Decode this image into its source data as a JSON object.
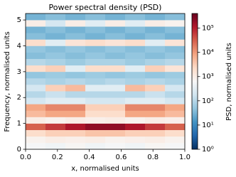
{
  "chart_data": {
    "type": "heatmap",
    "title": "Power spectral density (PSD)",
    "x_label": "x, normalised units",
    "y_label": "Frequency, normalised units",
    "colorbar_label": "PSD, normalised units",
    "x_edges": [
      0,
      0.125,
      0.25,
      0.375,
      0.5,
      0.625,
      0.75,
      0.875,
      1
    ],
    "y_edges": [
      0,
      0.25,
      0.5,
      0.75,
      1,
      1.25,
      1.5,
      1.75,
      2,
      2.25,
      2.5,
      2.75,
      3,
      3.25,
      3.5,
      3.75,
      4,
      4.25,
      4.5,
      4.75,
      5,
      5.25
    ],
    "values": [
      [
        600,
        500,
        700,
        500,
        600,
        500,
        700,
        600
      ],
      [
        800,
        1000,
        900,
        1000,
        800,
        900,
        1000,
        800
      ],
      [
        2000,
        3000,
        3000,
        4000,
        4000,
        3000,
        3000,
        2000
      ],
      [
        30000,
        60000,
        120000,
        200000,
        200000,
        120000,
        60000,
        30000
      ],
      [
        1000,
        800,
        1000,
        900,
        1000,
        800,
        1000,
        900
      ],
      [
        5000,
        8000,
        8000,
        2000,
        2000,
        8000,
        8000,
        5000
      ],
      [
        8000,
        15000,
        15000,
        3000,
        3000,
        15000,
        15000,
        8000
      ],
      [
        200,
        300,
        300,
        200,
        200,
        300,
        300,
        200
      ],
      [
        100,
        150,
        100,
        100,
        100,
        100,
        150,
        100
      ],
      [
        200,
        3000,
        5000,
        300,
        300,
        5000,
        3000,
        200
      ],
      [
        100,
        80,
        100,
        80,
        100,
        80,
        100,
        80
      ],
      [
        50,
        60,
        50,
        60,
        50,
        60,
        50,
        60
      ],
      [
        2000,
        3000,
        300,
        2000,
        2000,
        300,
        3000,
        1500
      ],
      [
        100,
        80,
        60,
        80,
        80,
        60,
        80,
        100
      ],
      [
        40,
        50,
        40,
        50,
        40,
        50,
        40,
        50
      ],
      [
        50,
        40,
        50,
        40,
        50,
        40,
        50,
        40
      ],
      [
        2000,
        300,
        1500,
        2000,
        1500,
        2000,
        300,
        1500
      ],
      [
        40,
        30,
        40,
        30,
        40,
        30,
        40,
        30
      ],
      [
        30,
        40,
        30,
        40,
        30,
        40,
        30,
        40
      ],
      [
        1000,
        200,
        1000,
        300,
        1000,
        300,
        1000,
        800
      ],
      [
        30,
        40,
        30,
        40,
        30,
        40,
        30,
        40
      ]
    ],
    "xlim": [
      0,
      1
    ],
    "ylim": [
      0,
      5.25
    ],
    "xticks": [
      {
        "value": 0,
        "label": "0.0"
      },
      0.2,
      0.4,
      0.6,
      0.8,
      {
        "value": 1,
        "label": "1.0"
      }
    ],
    "yticks": [
      0,
      1,
      2,
      3,
      4,
      5
    ],
    "zlim": [
      1,
      400000
    ],
    "zlog": true,
    "zticks": [
      {
        "value": 1,
        "label": "10⁰"
      },
      {
        "value": 10,
        "label": "10¹"
      },
      {
        "value": 100,
        "label": "10²"
      },
      {
        "value": 1000,
        "label": "10³"
      },
      {
        "value": 10000,
        "label": "10⁴"
      },
      {
        "value": 100000,
        "label": "10⁵"
      }
    ],
    "colormap": [
      "#053061",
      "#2166ac",
      "#4393c3",
      "#92c5de",
      "#d1e5f0",
      "#f7f7f7",
      "#fddbc7",
      "#f4a582",
      "#d6604d",
      "#b2182b",
      "#67001f"
    ]
  }
}
